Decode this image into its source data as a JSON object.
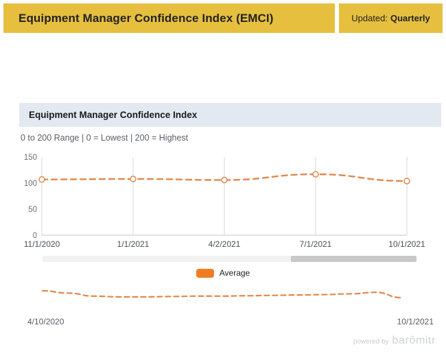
{
  "header": {
    "title": "Equipment Manager Confidence Index (EMCI)",
    "updated_label": "Updated:",
    "updated_value": "Quarterly"
  },
  "panel": {
    "title": "Equipment Manager Confidence Index",
    "subtitle": "0 to 200 Range | 0 = Lowest | 200 = Highest"
  },
  "chart_data": {
    "type": "line",
    "title": "Equipment Manager Confidence Index",
    "x": [
      "11/1/2020",
      "1/1/2021",
      "4/2/2021",
      "7/1/2021",
      "10/1/2021"
    ],
    "series": [
      {
        "name": "Average",
        "values": [
          107,
          108,
          106,
          117,
          104
        ],
        "color": "#e0874a",
        "line_style": "dashed",
        "marker": "open-circle"
      }
    ],
    "ylim": [
      0,
      150
    ],
    "yticks": [
      0,
      50,
      100,
      150
    ],
    "grid": "vertical-only",
    "legend_position": "bottom",
    "navigator": {
      "values": [
        112,
        109,
        105,
        104,
        104,
        104.5,
        105,
        105,
        105.5,
        106,
        106.5,
        107,
        108,
        110,
        103
      ],
      "start_label": "4/10/2020",
      "end_label": "10/1/2021"
    }
  },
  "scrollbar": {
    "thumb_start_pct": 66.5,
    "thumb_width_pct": 33.5
  },
  "footer": {
    "powered_by": "powered by",
    "brand": "barômitr"
  },
  "colors": {
    "header_yellow": "#e6bf3e",
    "panel_header_bg": "#e3e9f0",
    "line_orange": "#e0874a",
    "legend_orange": "#f07d23",
    "grid_gray": "#d8d8d8",
    "axis_gray": "#c4c7ca",
    "scroll_track": "#f1f1f1",
    "scroll_thumb": "#c8c8c8"
  }
}
